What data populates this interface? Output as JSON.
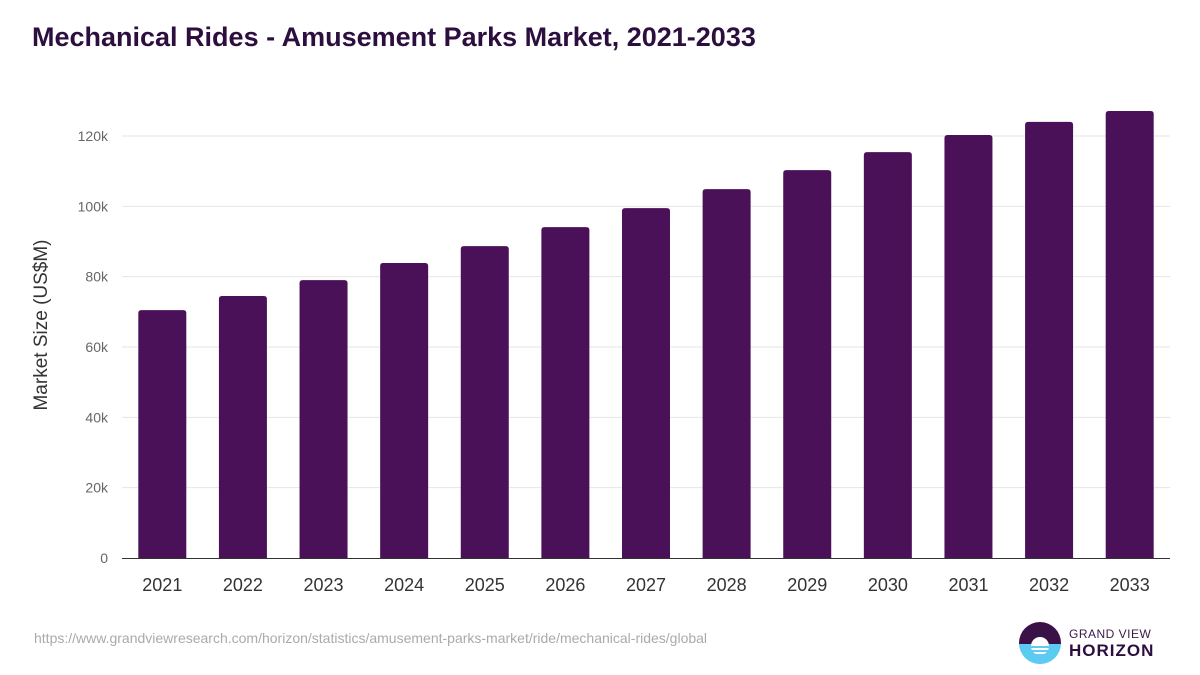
{
  "chart_data": {
    "type": "bar",
    "title": "Mechanical Rides - Amusement Parks Market, 2021-2033",
    "xlabel": "",
    "ylabel": "Market Size (US$M)",
    "categories": [
      "2021",
      "2022",
      "2023",
      "2024",
      "2025",
      "2026",
      "2027",
      "2028",
      "2029",
      "2030",
      "2031",
      "2032",
      "2033"
    ],
    "values": [
      70.5,
      74.5,
      79.0,
      83.9,
      88.7,
      94.1,
      99.5,
      104.9,
      110.3,
      115.4,
      120.3,
      124.0,
      127.1
    ],
    "value_unit": "thousand US$M",
    "ylim": [
      0,
      120
    ],
    "yticks": [
      0,
      20,
      40,
      60,
      80,
      100,
      120
    ],
    "ytick_labels": [
      "0",
      "20k",
      "40k",
      "60k",
      "80k",
      "100k",
      "120k"
    ],
    "grid": true,
    "bar_color": "#4a1158"
  },
  "source_url": "https://www.grandviewresearch.com/horizon/statistics/amusement-parks-market/ride/mechanical-rides/global",
  "logo": {
    "line1": "GRAND VIEW",
    "line2": "HORIZON"
  }
}
